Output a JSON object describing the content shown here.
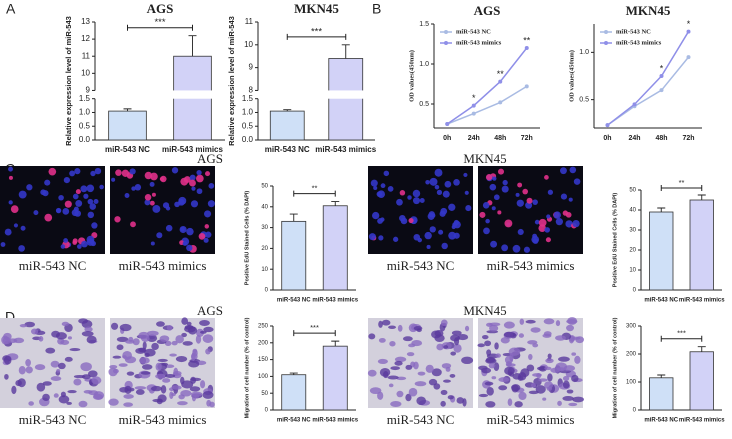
{
  "panels": [
    {
      "label": "A"
    },
    {
      "label": "B"
    },
    {
      "label": "C"
    },
    {
      "label": "D"
    }
  ],
  "image_groups": [
    {
      "title": "AGS",
      "captions": [
        "miR-543 NC",
        "miR-543 mimics"
      ]
    },
    {
      "title": "MKN45",
      "captions": [
        "miR-543 NC",
        "miR-543 mimics"
      ]
    },
    {
      "title": "AGS",
      "captions": [
        "miR-543 NC",
        "miR-543 mimics"
      ]
    },
    {
      "title": "MKN45",
      "captions": [
        "miR-543 NC",
        "miR-543 mimics"
      ]
    }
  ],
  "chart_data": [
    {
      "type": "bar",
      "title": "AGS",
      "ylabel": "Relative expression level of miR-543",
      "categories": [
        "miR-543 NC",
        "miR-543 mimics"
      ],
      "values": [
        1.05,
        11.0
      ],
      "errors": [
        0.08,
        1.2
      ],
      "colors": [
        "#cfe0f7",
        "#d2d2f7"
      ],
      "ylim": [
        0,
        13
      ],
      "ybreak": [
        1.5,
        9
      ],
      "yticks": [
        {
          "value": 0,
          "label": "0.0"
        },
        {
          "value": 0.5,
          "label": "0.5"
        },
        {
          "value": 1,
          "label": "1.0"
        },
        {
          "value": 1.5,
          "label": "1.5"
        },
        9,
        10,
        11,
        12,
        13
      ],
      "significance": "***"
    },
    {
      "type": "bar",
      "title": "MKN45",
      "ylabel": "Relative expression level of miR-543",
      "categories": [
        "miR-543 NC",
        "miR-543 mimics"
      ],
      "values": [
        1.05,
        9.4
      ],
      "errors": [
        0.05,
        0.6
      ],
      "colors": [
        "#cfe0f7",
        "#d2d2f7"
      ],
      "ylim": [
        0,
        11
      ],
      "ybreak": [
        1.5,
        8
      ],
      "yticks": [
        {
          "value": 0,
          "label": "0.0"
        },
        {
          "value": 0.5,
          "label": "0.5"
        },
        {
          "value": 1,
          "label": "1.0"
        },
        {
          "value": 1.5,
          "label": "1.5"
        },
        8,
        9,
        10,
        11
      ],
      "significance": "***"
    },
    {
      "type": "line",
      "title": "AGS",
      "ylabel": "OD values(450nm)",
      "categories": [
        "0h",
        "24h",
        "48h",
        "72h"
      ],
      "series": [
        {
          "name": "miR-543 NC",
          "color": "#a9bbe3",
          "values": [
            0.25,
            0.38,
            0.52,
            0.72
          ]
        },
        {
          "name": "miR-543 mimics",
          "color": "#8f8fe8",
          "values": [
            0.25,
            0.48,
            0.78,
            1.2
          ]
        }
      ],
      "annotations": [
        null,
        "*",
        "**",
        "**"
      ],
      "ylim": [
        0.2,
        1.5
      ],
      "yticks": [
        {
          "value": 0.5,
          "label": "0.5"
        },
        {
          "value": 1,
          "label": "1.0"
        },
        {
          "value": 1.5,
          "label": "1.5"
        }
      ]
    },
    {
      "type": "line",
      "title": "MKN45",
      "ylabel": "OD values(450nm)",
      "categories": [
        "0h",
        "24h",
        "48h",
        "72h"
      ],
      "series": [
        {
          "name": "miR-543 NC",
          "color": "#a9bbe3",
          "values": [
            0.23,
            0.43,
            0.6,
            0.95
          ]
        },
        {
          "name": "miR-543 mimics",
          "color": "#8f8fe8",
          "values": [
            0.23,
            0.45,
            0.75,
            1.22
          ]
        }
      ],
      "annotations": [
        null,
        null,
        "*",
        "*"
      ],
      "ylim": [
        0.2,
        1.3
      ],
      "yticks": [
        {
          "value": 0.5,
          "label": "0.5"
        },
        {
          "value": 1,
          "label": "1.0"
        }
      ]
    },
    {
      "type": "bar",
      "ylabel": "Positive EdU Stained Cells (% DAPI)",
      "categories": [
        "miR-543 NC",
        "miR-543 mimics"
      ],
      "values": [
        33,
        40.5
      ],
      "errors": [
        3.5,
        2
      ],
      "colors": [
        "#cfe0f7",
        "#d2d2f7"
      ],
      "ylim": [
        0,
        50
      ],
      "yticks": [
        0,
        10,
        20,
        30,
        40,
        50
      ],
      "significance": "**"
    },
    {
      "type": "bar",
      "ylabel": "Positive EdU Stained Cells (% DAPI)",
      "categories": [
        "miR-543 NC",
        "miR-543 mimics"
      ],
      "values": [
        39,
        45
      ],
      "errors": [
        2,
        2.5
      ],
      "colors": [
        "#cfe0f7",
        "#d2d2f7"
      ],
      "ylim": [
        0,
        50
      ],
      "yticks": [
        0,
        10,
        20,
        30,
        40,
        50
      ],
      "significance": "**"
    },
    {
      "type": "bar",
      "ylabel": "Migration of cell number (% of control)",
      "categories": [
        "miR-543 NC",
        "miR-543 mimics"
      ],
      "values": [
        105,
        190
      ],
      "errors": [
        5,
        15
      ],
      "colors": [
        "#cfe0f7",
        "#d2d2f7"
      ],
      "ylim": [
        0,
        250
      ],
      "yticks": [
        0,
        50,
        100,
        150,
        200,
        250
      ],
      "significance": "***"
    },
    {
      "type": "bar",
      "ylabel": "Migration of cell number (% of control)",
      "categories": [
        "miR-543 NC",
        "miR-543 mimics"
      ],
      "values": [
        115,
        208
      ],
      "errors": [
        10,
        18
      ],
      "colors": [
        "#cfe0f7",
        "#d2d2f7"
      ],
      "ylim": [
        0,
        300
      ],
      "yticks": [
        0,
        100,
        200,
        300
      ],
      "significance": "***"
    }
  ]
}
